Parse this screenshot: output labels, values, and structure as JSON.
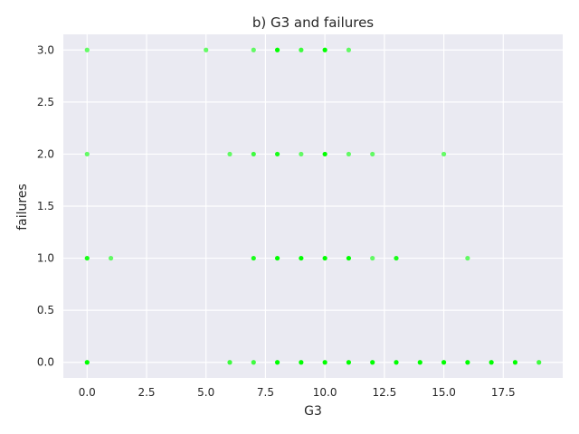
{
  "chart_data": {
    "type": "scatter",
    "title": "b) G3 and failures",
    "xlabel": "G3",
    "ylabel": "failures",
    "xlim": [
      -1.0,
      20.0
    ],
    "ylim": [
      -0.15,
      3.15
    ],
    "xticks": [
      0,
      2.5,
      5,
      7.5,
      10,
      12.5,
      15,
      17.5
    ],
    "xtick_labels": [
      "0.0",
      "2.5",
      "5.0",
      "7.5",
      "10.0",
      "12.5",
      "15.0",
      "17.5"
    ],
    "yticks": [
      0,
      0.5,
      1,
      1.5,
      2,
      2.5,
      3
    ],
    "ytick_labels": [
      "0.0",
      "0.5",
      "1.0",
      "1.5",
      "2.0",
      "2.5",
      "3.0"
    ],
    "grid": true,
    "colors": {
      "background": "#eaeaf2",
      "grid": "#ffffff",
      "marker": "#00ff00"
    },
    "points": [
      {
        "x": 0,
        "y": 3,
        "weight": 1
      },
      {
        "x": 5,
        "y": 3,
        "weight": 1
      },
      {
        "x": 7,
        "y": 3,
        "weight": 1
      },
      {
        "x": 8,
        "y": 3,
        "weight": 4
      },
      {
        "x": 9,
        "y": 3,
        "weight": 2
      },
      {
        "x": 10,
        "y": 3,
        "weight": 4
      },
      {
        "x": 11,
        "y": 3,
        "weight": 1
      },
      {
        "x": 0,
        "y": 2,
        "weight": 1
      },
      {
        "x": 6,
        "y": 2,
        "weight": 1
      },
      {
        "x": 7,
        "y": 2,
        "weight": 2
      },
      {
        "x": 8,
        "y": 2,
        "weight": 3
      },
      {
        "x": 9,
        "y": 2,
        "weight": 1
      },
      {
        "x": 10,
        "y": 2,
        "weight": 4
      },
      {
        "x": 11,
        "y": 2,
        "weight": 1
      },
      {
        "x": 12,
        "y": 2,
        "weight": 1
      },
      {
        "x": 15,
        "y": 2,
        "weight": 1
      },
      {
        "x": 0,
        "y": 1,
        "weight": 3
      },
      {
        "x": 1,
        "y": 1,
        "weight": 1
      },
      {
        "x": 7,
        "y": 1,
        "weight": 3
      },
      {
        "x": 8,
        "y": 1,
        "weight": 4
      },
      {
        "x": 9,
        "y": 1,
        "weight": 4
      },
      {
        "x": 10,
        "y": 1,
        "weight": 4
      },
      {
        "x": 11,
        "y": 1,
        "weight": 4
      },
      {
        "x": 12,
        "y": 1,
        "weight": 1
      },
      {
        "x": 13,
        "y": 1,
        "weight": 3
      },
      {
        "x": 16,
        "y": 1,
        "weight": 1
      },
      {
        "x": 0,
        "y": 0,
        "weight": 4
      },
      {
        "x": 6,
        "y": 0,
        "weight": 2
      },
      {
        "x": 7,
        "y": 0,
        "weight": 2
      },
      {
        "x": 8,
        "y": 0,
        "weight": 4
      },
      {
        "x": 9,
        "y": 0,
        "weight": 4
      },
      {
        "x": 10,
        "y": 0,
        "weight": 4
      },
      {
        "x": 11,
        "y": 0,
        "weight": 4
      },
      {
        "x": 12,
        "y": 0,
        "weight": 4
      },
      {
        "x": 13,
        "y": 0,
        "weight": 4
      },
      {
        "x": 14,
        "y": 0,
        "weight": 4
      },
      {
        "x": 15,
        "y": 0,
        "weight": 4
      },
      {
        "x": 16,
        "y": 0,
        "weight": 4
      },
      {
        "x": 17,
        "y": 0,
        "weight": 4
      },
      {
        "x": 18,
        "y": 0,
        "weight": 4
      },
      {
        "x": 19,
        "y": 0,
        "weight": 2
      }
    ]
  }
}
